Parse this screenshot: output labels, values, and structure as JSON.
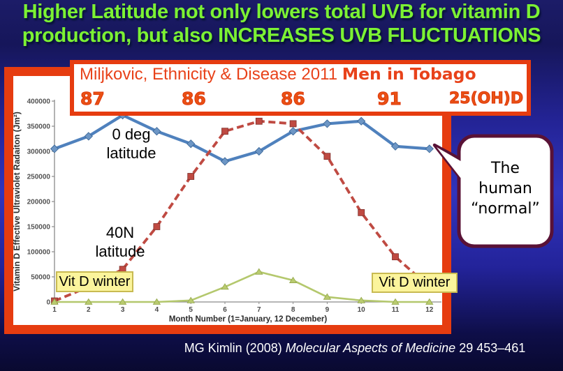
{
  "title": {
    "line1": "Higher Latitude not only lowers total UVB for vitamin D",
    "line2": "production, but also INCREASES UVB FLUCTUATIONS"
  },
  "topbox": {
    "citation": "Miljkovic, Ethnicity & Disease 2011",
    "citation_bold": "Men in Tobago",
    "values": [
      "87",
      "86",
      "86",
      "91"
    ],
    "values_label": "25(OH)D"
  },
  "chart_data": {
    "type": "line",
    "x": [
      1,
      2,
      3,
      4,
      5,
      6,
      7,
      8,
      9,
      10,
      11,
      12
    ],
    "xlabel": "Month Number (1=January, 12 December)",
    "ylabel": "Vitamin D Effective Ultraviolet Radaiton (Jm²)",
    "ylim": [
      0,
      400000
    ],
    "ytick_step": 50000,
    "grid": false,
    "series": [
      {
        "name": "0 deg latitude",
        "color": "#4f81bd",
        "style": "solid",
        "marker": "diamond",
        "values": [
          305000,
          330000,
          372000,
          340000,
          315000,
          280000,
          300000,
          340000,
          355000,
          360000,
          310000,
          305000
        ]
      },
      {
        "name": "40N latitude",
        "color": "#bf4a42",
        "style": "dashed",
        "marker": "square",
        "values": [
          2000,
          30000,
          65000,
          150000,
          250000,
          340000,
          360000,
          355000,
          290000,
          178000,
          90000,
          30000
        ]
      },
      {
        "name": "",
        "color": "#b4c86d",
        "style": "solid",
        "marker": "triangle",
        "values": [
          0,
          0,
          0,
          0,
          3000,
          30000,
          60000,
          43000,
          10000,
          3000,
          0,
          0
        ]
      }
    ],
    "annotations": {
      "vit_d_winter_left": "Vit D winter",
      "vit_d_winter_right": "Vit D winter",
      "bubble": "The\nhuman\n“normal”"
    }
  },
  "series_labels": {
    "zero_deg": "0 deg\nlatitude",
    "forty_n": "40N\nlatitude"
  },
  "footer": {
    "pre": "MG Kimlin (2008) ",
    "italic": "Molecular Aspects of Medicine",
    "post": " 29 453–461"
  },
  "colors": {
    "slide_accent_green": "#7cf233",
    "box_border_red": "#e63c10",
    "bubble_border": "#591236",
    "vitd_fill": "#fbf49c"
  }
}
